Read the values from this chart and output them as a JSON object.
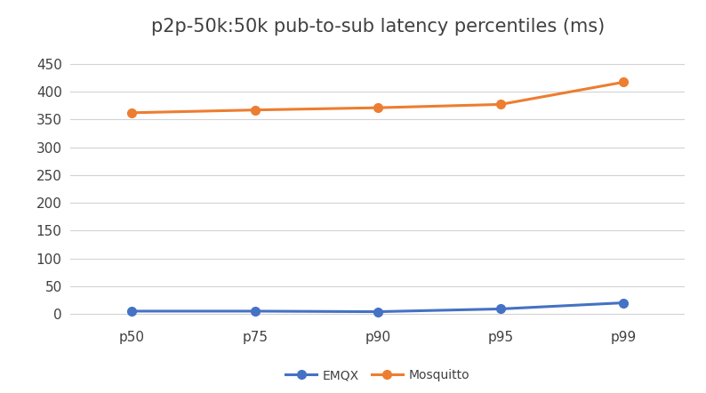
{
  "title": "p2p-50k:50k pub-to-sub latency percentiles (ms)",
  "categories": [
    "p50",
    "p75",
    "p90",
    "p95",
    "p99"
  ],
  "series": [
    {
      "name": "EMQX",
      "values": [
        5,
        5,
        4,
        9,
        20
      ],
      "color": "#4472c4",
      "marker": "o"
    },
    {
      "name": "Mosquitto",
      "values": [
        362,
        367,
        371,
        377,
        417
      ],
      "color": "#ed7d31",
      "marker": "o"
    }
  ],
  "ylim": [
    -15,
    480
  ],
  "yticks": [
    0,
    50,
    100,
    150,
    200,
    250,
    300,
    350,
    400,
    450
  ],
  "grid_color": "#d3d3d3",
  "background_color": "#ffffff",
  "title_fontsize": 15,
  "legend_fontsize": 10,
  "tick_fontsize": 11,
  "line_width": 2.2,
  "marker_size": 7
}
